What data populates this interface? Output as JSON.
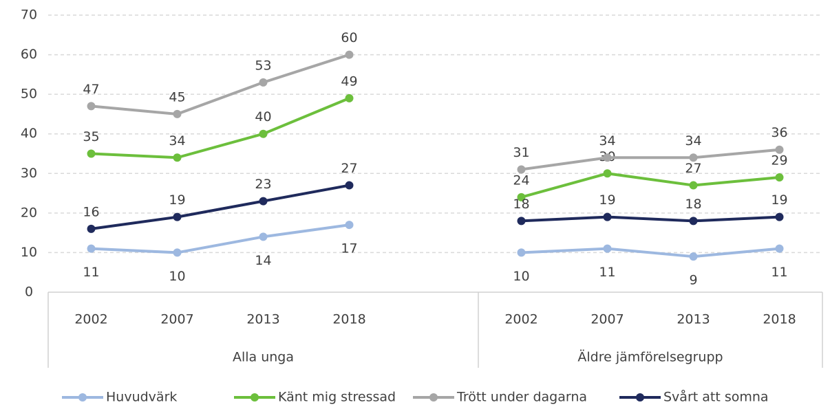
{
  "chart_data": {
    "type": "line",
    "groups": [
      {
        "name": "Alla unga",
        "categories": [
          "2002",
          "2007",
          "2013",
          "2018",
          null
        ]
      },
      {
        "name": "Äldre jämförelsegrupp",
        "categories": [
          "2002",
          "2007",
          "2013",
          "2018"
        ]
      }
    ],
    "series": [
      {
        "name": "Huvudvärk",
        "color": "#9db8e0",
        "values": [
          11,
          10,
          14,
          17,
          null,
          10,
          11,
          9,
          11
        ],
        "label_side": "below"
      },
      {
        "name": "Känt mig stressad",
        "color": "#6cbf3c",
        "values": [
          35,
          34,
          40,
          49,
          null,
          24,
          30,
          27,
          29
        ],
        "label_side": "above"
      },
      {
        "name": "Trött under dagarna",
        "color": "#a6a6a6",
        "values": [
          47,
          45,
          53,
          60,
          null,
          31,
          34,
          34,
          36
        ],
        "label_side": "above"
      },
      {
        "name": "Svårt att somna",
        "color": "#1f2a5c",
        "values": [
          16,
          19,
          23,
          27,
          null,
          18,
          19,
          18,
          19
        ],
        "label_side": "above"
      }
    ],
    "ylim": [
      0,
      70
    ],
    "yticks": [
      0,
      10,
      20,
      30,
      40,
      50,
      60,
      70
    ],
    "grid": true,
    "legend": "bottom"
  }
}
